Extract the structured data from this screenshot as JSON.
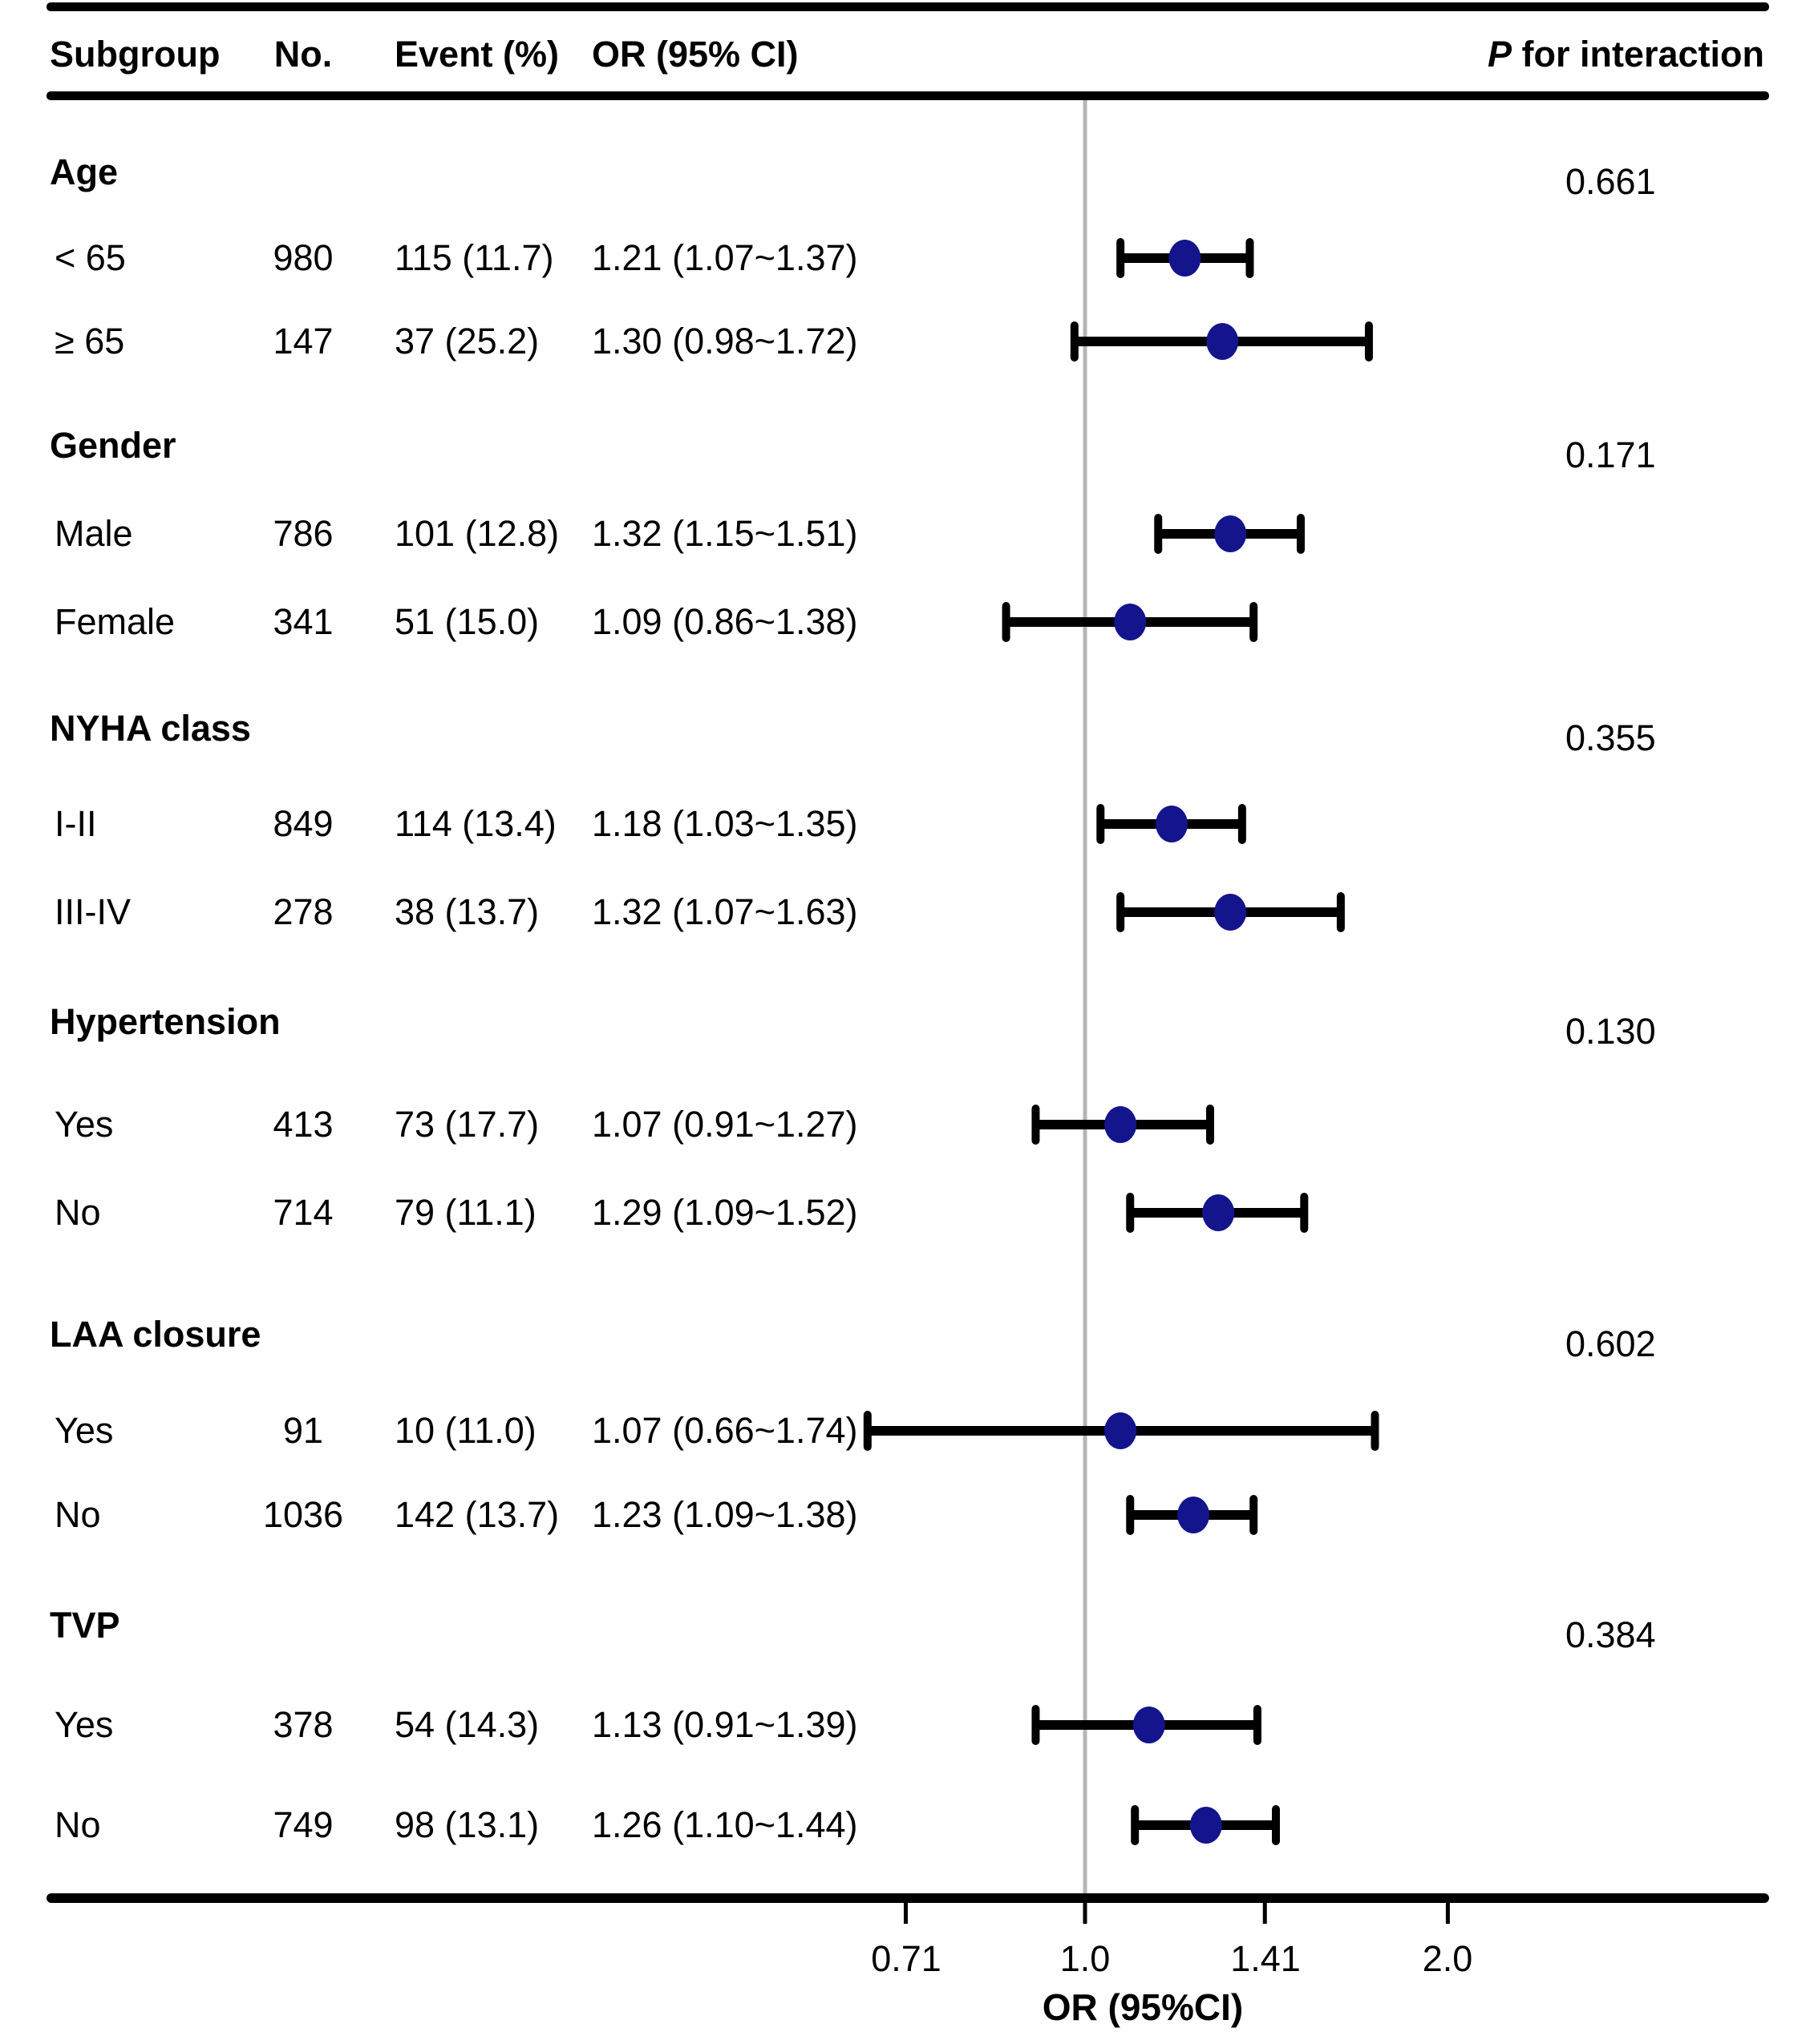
{
  "table_headers": {
    "subgroup": "Subgroup",
    "no": "No.",
    "event": "Event (%)",
    "or": "OR (95% CI)",
    "p_italic": "P",
    "p_rest": " for interaction"
  },
  "axis": {
    "label": "OR (95%CI)",
    "tick_labels": [
      "0.71",
      "1.0",
      "1.41",
      "2.0"
    ]
  },
  "colors": {
    "point": "#14148C",
    "ci": "#000000",
    "ref_line": "#b5b5b5",
    "rule": "#000000"
  },
  "chart_data": {
    "type": "forest",
    "xlabel": "OR (95%CI)",
    "x_scale": "log2",
    "x_ticks": [
      0.71,
      1.0,
      1.41,
      2.0
    ],
    "ref_line": 1.0,
    "legend": "none",
    "columns": [
      "Subgroup",
      "No.",
      "Event (%)",
      "OR (95% CI)",
      "P for interaction"
    ],
    "groups": [
      {
        "name": "Age",
        "p_interaction": "0.661",
        "rows": [
          {
            "label": "< 65",
            "n": "980",
            "event": "115 (11.7)",
            "or_text": "1.21 (1.07~1.37)",
            "or": 1.21,
            "lo": 1.07,
            "hi": 1.37
          },
          {
            "label": "≥ 65",
            "n": "147",
            "event": "37 (25.2)",
            "or_text": "1.30 (0.98~1.72)",
            "or": 1.3,
            "lo": 0.98,
            "hi": 1.72
          }
        ]
      },
      {
        "name": "Gender",
        "p_interaction": "0.171",
        "rows": [
          {
            "label": "Male",
            "n": "786",
            "event": "101 (12.8)",
            "or_text": "1.32 (1.15~1.51)",
            "or": 1.32,
            "lo": 1.15,
            "hi": 1.51
          },
          {
            "label": "Female",
            "n": "341",
            "event": "51 (15.0)",
            "or_text": "1.09 (0.86~1.38)",
            "or": 1.09,
            "lo": 0.86,
            "hi": 1.38
          }
        ]
      },
      {
        "name": "NYHA class",
        "p_interaction": "0.355",
        "rows": [
          {
            "label": "I-II",
            "n": "849",
            "event": "114 (13.4)",
            "or_text": "1.18 (1.03~1.35)",
            "or": 1.18,
            "lo": 1.03,
            "hi": 1.35
          },
          {
            "label": "III-IV",
            "n": "278",
            "event": "38 (13.7)",
            "or_text": "1.32 (1.07~1.63)",
            "or": 1.32,
            "lo": 1.07,
            "hi": 1.63
          }
        ]
      },
      {
        "name": "Hypertension",
        "p_interaction": "0.130",
        "rows": [
          {
            "label": "Yes",
            "n": "413",
            "event": "73 (17.7)",
            "or_text": "1.07 (0.91~1.27)",
            "or": 1.07,
            "lo": 0.91,
            "hi": 1.27
          },
          {
            "label": "No",
            "n": "714",
            "event": "79 (11.1)",
            "or_text": "1.29 (1.09~1.52)",
            "or": 1.29,
            "lo": 1.09,
            "hi": 1.52
          }
        ]
      },
      {
        "name": "LAA closure",
        "p_interaction": "0.602",
        "rows": [
          {
            "label": "Yes",
            "n": "91",
            "event": "10 (11.0)",
            "or_text": "1.07 (0.66~1.74)",
            "or": 1.07,
            "lo": 0.66,
            "hi": 1.74
          },
          {
            "label": "No",
            "n": "1036",
            "event": "142 (13.7)",
            "or_text": "1.23 (1.09~1.38)",
            "or": 1.23,
            "lo": 1.09,
            "hi": 1.38
          }
        ]
      },
      {
        "name": "TVP",
        "p_interaction": "0.384",
        "rows": [
          {
            "label": "Yes",
            "n": "378",
            "event": "54 (14.3)",
            "or_text": "1.13 (0.91~1.39)",
            "or": 1.13,
            "lo": 0.91,
            "hi": 1.39
          },
          {
            "label": "No",
            "n": "749",
            "event": "98 (13.1)",
            "or_text": "1.26 (1.10~1.44)",
            "or": 1.26,
            "lo": 1.1,
            "hi": 1.44
          }
        ]
      }
    ]
  }
}
